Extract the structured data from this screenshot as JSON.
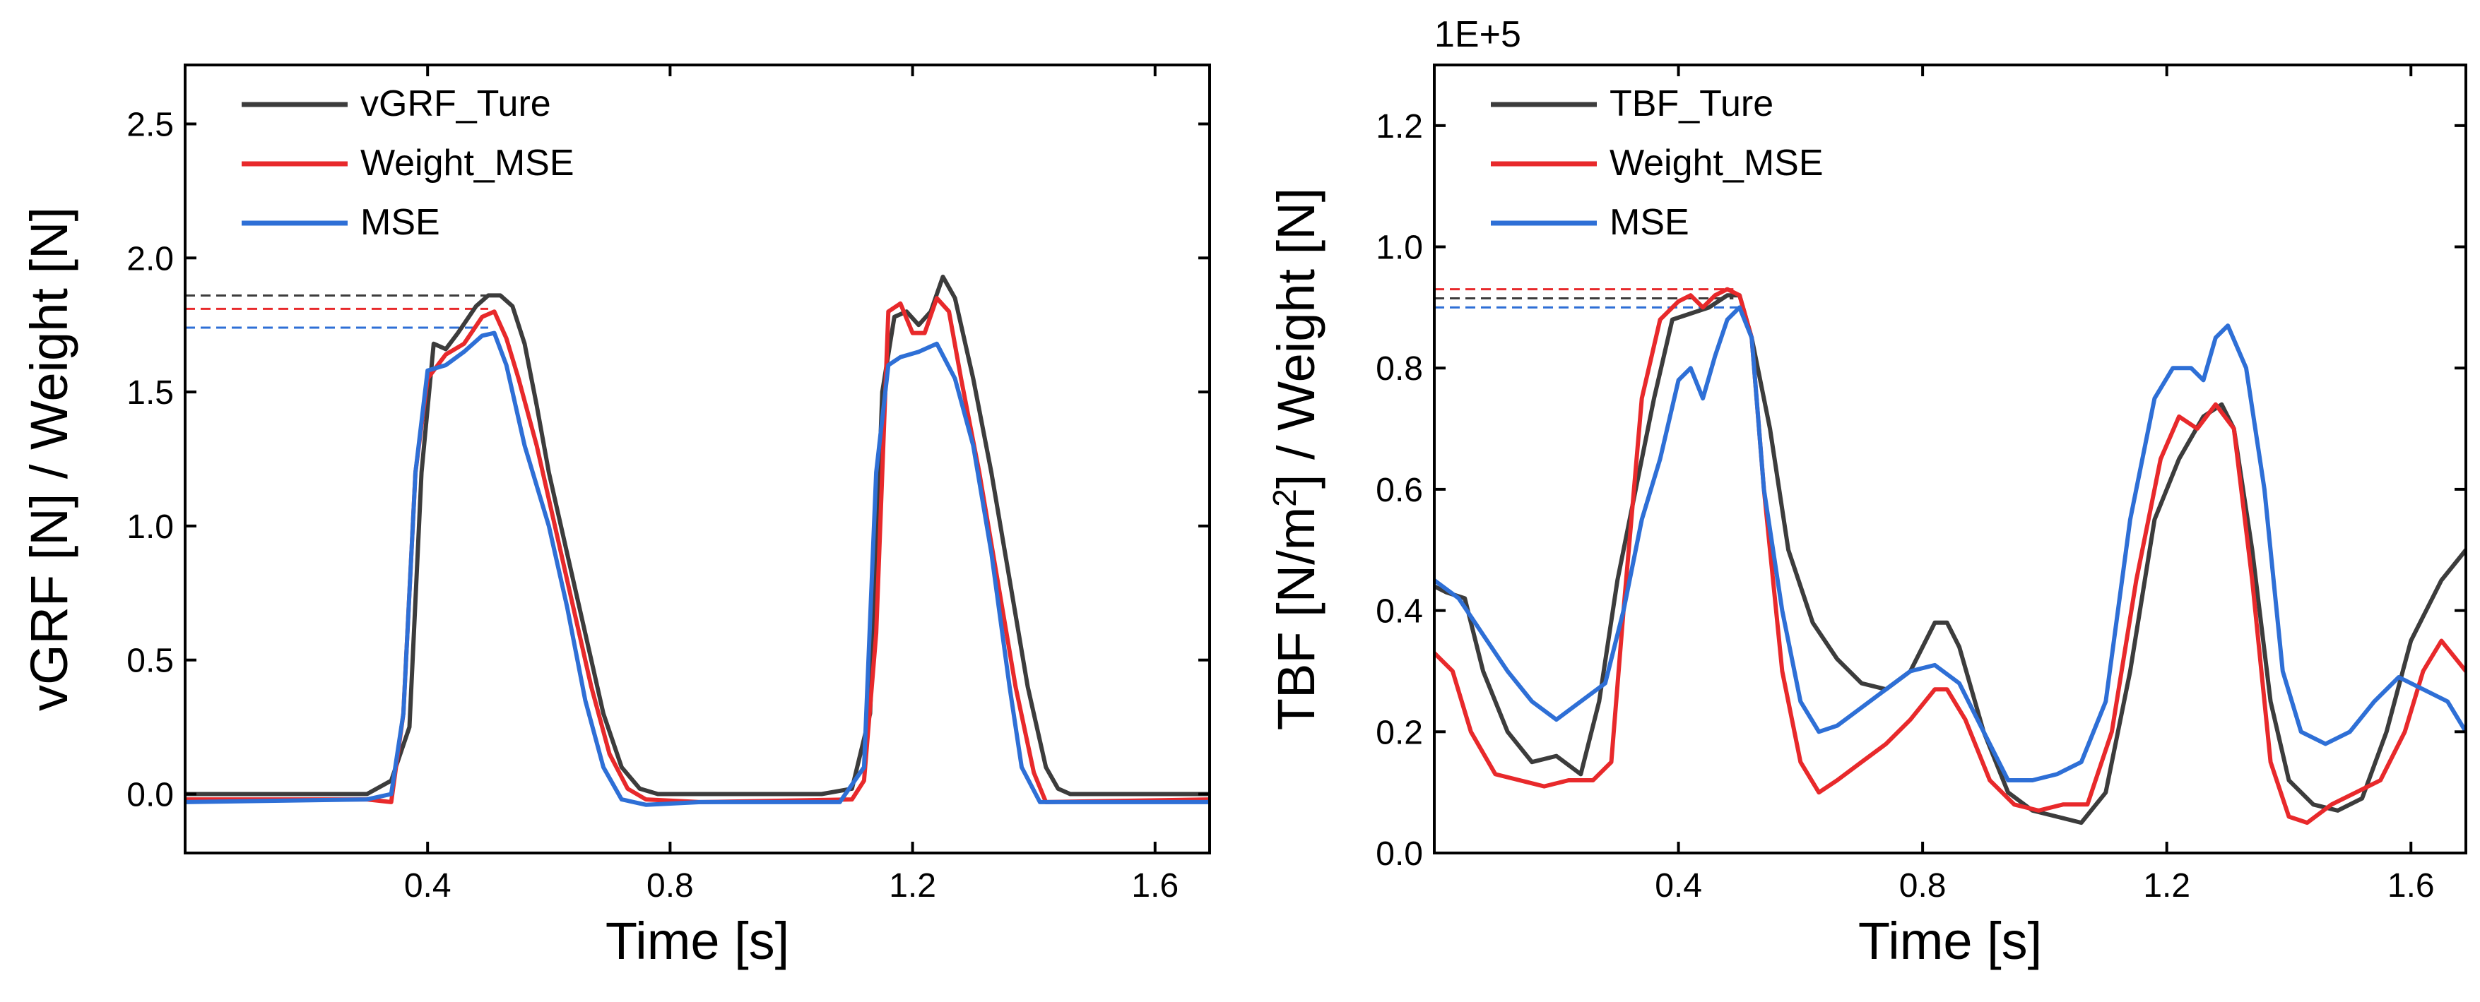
{
  "chart_data": [
    {
      "type": "line",
      "xlabel": "Time [s]",
      "ylabel": "vGRF [N] / Weight [N]",
      "xlim": [
        0.0,
        1.69
      ],
      "ylim": [
        -0.22,
        2.72
      ],
      "xticks": [
        0.4,
        0.8,
        1.2,
        1.6
      ],
      "yticks": [
        0.0,
        0.5,
        1.0,
        1.5,
        2.0,
        2.5
      ],
      "xtick_labels": [
        "0.4",
        "0.8",
        "1.2",
        "1.6"
      ],
      "ytick_labels": [
        "0.0",
        "0.5",
        "1.0",
        "1.5",
        "2.0",
        "2.5"
      ],
      "legend_position": "top-left",
      "series": [
        {
          "name": "vGRF_Ture",
          "color": "#3c3c3c",
          "x": [
            0.0,
            0.3,
            0.34,
            0.37,
            0.39,
            0.41,
            0.43,
            0.45,
            0.48,
            0.5,
            0.52,
            0.54,
            0.56,
            0.58,
            0.6,
            0.63,
            0.66,
            0.69,
            0.72,
            0.75,
            0.78,
            0.85,
            1.05,
            1.1,
            1.13,
            1.15,
            1.17,
            1.19,
            1.21,
            1.23,
            1.25,
            1.27,
            1.3,
            1.33,
            1.36,
            1.39,
            1.42,
            1.44,
            1.46,
            1.69
          ],
          "y": [
            0.0,
            0.0,
            0.05,
            0.25,
            1.2,
            1.68,
            1.66,
            1.72,
            1.82,
            1.86,
            1.86,
            1.82,
            1.68,
            1.45,
            1.2,
            0.9,
            0.6,
            0.3,
            0.1,
            0.02,
            0.0,
            0.0,
            0.0,
            0.02,
            0.3,
            1.5,
            1.78,
            1.8,
            1.75,
            1.8,
            1.93,
            1.85,
            1.55,
            1.2,
            0.8,
            0.4,
            0.1,
            0.02,
            0.0,
            0.0
          ]
        },
        {
          "name": "Weight_MSE",
          "color": "#e8292b",
          "x": [
            0.0,
            0.3,
            0.34,
            0.36,
            0.38,
            0.4,
            0.43,
            0.46,
            0.49,
            0.51,
            0.53,
            0.55,
            0.58,
            0.61,
            0.64,
            0.67,
            0.7,
            0.73,
            0.76,
            0.85,
            1.1,
            1.12,
            1.14,
            1.16,
            1.18,
            1.2,
            1.22,
            1.24,
            1.26,
            1.28,
            1.31,
            1.34,
            1.37,
            1.4,
            1.42,
            1.69
          ],
          "y": [
            -0.02,
            -0.02,
            -0.03,
            0.3,
            1.2,
            1.55,
            1.64,
            1.68,
            1.78,
            1.8,
            1.7,
            1.55,
            1.3,
            1.0,
            0.7,
            0.4,
            0.15,
            0.02,
            -0.02,
            -0.03,
            -0.02,
            0.05,
            0.6,
            1.8,
            1.83,
            1.72,
            1.72,
            1.85,
            1.8,
            1.55,
            1.2,
            0.8,
            0.4,
            0.08,
            -0.03,
            -0.02
          ]
        },
        {
          "name": "MSE",
          "color": "#2e6fd6",
          "x": [
            0.0,
            0.3,
            0.34,
            0.36,
            0.38,
            0.4,
            0.43,
            0.46,
            0.49,
            0.51,
            0.53,
            0.56,
            0.6,
            0.63,
            0.66,
            0.69,
            0.72,
            0.76,
            0.85,
            1.08,
            1.12,
            1.14,
            1.16,
            1.18,
            1.21,
            1.24,
            1.27,
            1.3,
            1.33,
            1.36,
            1.38,
            1.41,
            1.69
          ],
          "y": [
            -0.03,
            -0.02,
            0.0,
            0.3,
            1.2,
            1.58,
            1.6,
            1.65,
            1.71,
            1.72,
            1.6,
            1.3,
            1.0,
            0.7,
            0.35,
            0.1,
            -0.02,
            -0.04,
            -0.03,
            -0.03,
            0.1,
            1.2,
            1.6,
            1.63,
            1.65,
            1.68,
            1.55,
            1.3,
            0.9,
            0.4,
            0.1,
            -0.03,
            -0.03
          ]
        }
      ],
      "reference_lines": [
        {
          "y": 1.86,
          "x_end": 0.51,
          "color": "#3c3c3c"
        },
        {
          "y": 1.81,
          "x_end": 0.5,
          "color": "#e8292b"
        },
        {
          "y": 1.74,
          "x_end": 0.5,
          "color": "#2e6fd6"
        }
      ]
    },
    {
      "type": "line",
      "xlabel": "Time [s]",
      "ylabel": "TBF [N/m²] / Weight [N]",
      "ylabel_parts": {
        "before": "TBF [N/m",
        "superscript": "2",
        "after": "] / Weight [N]"
      },
      "y_multiplier": "1E+5",
      "xlim": [
        0.0,
        1.69
      ],
      "ylim": [
        0.0,
        1.3
      ],
      "xticks": [
        0.4,
        0.8,
        1.2,
        1.6
      ],
      "yticks": [
        0.0,
        0.2,
        0.4,
        0.6,
        0.8,
        1.0,
        1.2
      ],
      "xtick_labels": [
        "0.4",
        "0.8",
        "1.2",
        "1.6"
      ],
      "ytick_labels": [
        "0.0",
        "0.2",
        "0.4",
        "0.6",
        "0.8",
        "1.0",
        "1.2"
      ],
      "legend_position": "top-left",
      "series": [
        {
          "name": "TBF_Ture",
          "color": "#3c3c3c",
          "x": [
            0.0,
            0.02,
            0.05,
            0.08,
            0.12,
            0.16,
            0.2,
            0.24,
            0.27,
            0.3,
            0.33,
            0.36,
            0.39,
            0.42,
            0.45,
            0.48,
            0.5,
            0.52,
            0.55,
            0.58,
            0.62,
            0.66,
            0.7,
            0.74,
            0.78,
            0.82,
            0.84,
            0.86,
            0.9,
            0.94,
            0.98,
            1.02,
            1.06,
            1.1,
            1.14,
            1.18,
            1.22,
            1.26,
            1.29,
            1.31,
            1.34,
            1.37,
            1.4,
            1.44,
            1.48,
            1.52,
            1.56,
            1.6,
            1.65,
            1.69
          ],
          "y": [
            0.44,
            0.43,
            0.42,
            0.3,
            0.2,
            0.15,
            0.16,
            0.13,
            0.25,
            0.45,
            0.6,
            0.75,
            0.88,
            0.89,
            0.9,
            0.92,
            0.92,
            0.85,
            0.7,
            0.5,
            0.38,
            0.32,
            0.28,
            0.27,
            0.3,
            0.38,
            0.38,
            0.34,
            0.2,
            0.1,
            0.07,
            0.06,
            0.05,
            0.1,
            0.3,
            0.55,
            0.65,
            0.72,
            0.74,
            0.7,
            0.5,
            0.25,
            0.12,
            0.08,
            0.07,
            0.09,
            0.2,
            0.35,
            0.45,
            0.5
          ]
        },
        {
          "name": "Weight_MSE",
          "color": "#e8292b",
          "x": [
            0.0,
            0.03,
            0.06,
            0.1,
            0.14,
            0.18,
            0.22,
            0.26,
            0.29,
            0.31,
            0.34,
            0.37,
            0.4,
            0.42,
            0.44,
            0.46,
            0.48,
            0.5,
            0.52,
            0.54,
            0.57,
            0.6,
            0.63,
            0.66,
            0.7,
            0.74,
            0.78,
            0.82,
            0.84,
            0.87,
            0.91,
            0.95,
            0.99,
            1.03,
            1.07,
            1.11,
            1.15,
            1.19,
            1.22,
            1.25,
            1.28,
            1.31,
            1.34,
            1.37,
            1.4,
            1.43,
            1.47,
            1.51,
            1.55,
            1.59,
            1.62,
            1.65,
            1.69
          ],
          "y": [
            0.33,
            0.3,
            0.2,
            0.13,
            0.12,
            0.11,
            0.12,
            0.12,
            0.15,
            0.4,
            0.75,
            0.88,
            0.91,
            0.92,
            0.9,
            0.92,
            0.93,
            0.92,
            0.85,
            0.6,
            0.3,
            0.15,
            0.1,
            0.12,
            0.15,
            0.18,
            0.22,
            0.27,
            0.27,
            0.22,
            0.12,
            0.08,
            0.07,
            0.08,
            0.08,
            0.2,
            0.45,
            0.65,
            0.72,
            0.7,
            0.74,
            0.7,
            0.45,
            0.15,
            0.06,
            0.05,
            0.08,
            0.1,
            0.12,
            0.2,
            0.3,
            0.35,
            0.3
          ]
        },
        {
          "name": "MSE",
          "color": "#2e6fd6",
          "x": [
            0.0,
            0.04,
            0.08,
            0.12,
            0.16,
            0.2,
            0.24,
            0.28,
            0.31,
            0.34,
            0.37,
            0.4,
            0.42,
            0.44,
            0.46,
            0.48,
            0.5,
            0.52,
            0.54,
            0.57,
            0.6,
            0.63,
            0.66,
            0.7,
            0.74,
            0.78,
            0.82,
            0.86,
            0.9,
            0.94,
            0.98,
            1.02,
            1.06,
            1.1,
            1.14,
            1.18,
            1.21,
            1.24,
            1.26,
            1.28,
            1.3,
            1.33,
            1.36,
            1.39,
            1.42,
            1.46,
            1.5,
            1.54,
            1.58,
            1.62,
            1.66,
            1.69
          ],
          "y": [
            0.45,
            0.42,
            0.36,
            0.3,
            0.25,
            0.22,
            0.25,
            0.28,
            0.4,
            0.55,
            0.65,
            0.78,
            0.8,
            0.75,
            0.82,
            0.88,
            0.9,
            0.85,
            0.6,
            0.4,
            0.25,
            0.2,
            0.21,
            0.24,
            0.27,
            0.3,
            0.31,
            0.28,
            0.2,
            0.12,
            0.12,
            0.13,
            0.15,
            0.25,
            0.55,
            0.75,
            0.8,
            0.8,
            0.78,
            0.85,
            0.87,
            0.8,
            0.6,
            0.3,
            0.2,
            0.18,
            0.2,
            0.25,
            0.29,
            0.27,
            0.25,
            0.2
          ]
        }
      ],
      "reference_lines": [
        {
          "y": 0.93,
          "x_end": 0.49,
          "color": "#e8292b"
        },
        {
          "y": 0.915,
          "x_end": 0.49,
          "color": "#3c3c3c"
        },
        {
          "y": 0.9,
          "x_end": 0.5,
          "color": "#2e6fd6"
        }
      ]
    }
  ]
}
